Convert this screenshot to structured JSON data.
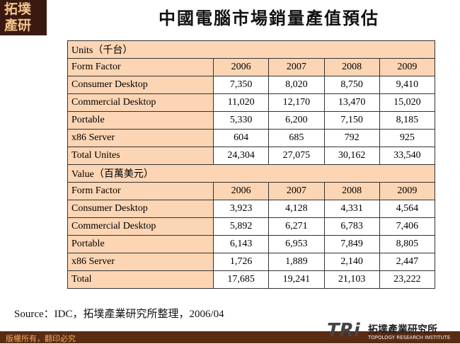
{
  "logo": {
    "line1": "拓墣",
    "line2": "產研"
  },
  "title": "中國電腦市場銷量產值預估",
  "table": {
    "sections": [
      {
        "label": "Units（千台）",
        "header": [
          "Form Factor",
          "2006",
          "2007",
          "2008",
          "2009"
        ],
        "rows": [
          [
            "Consumer Desktop",
            "7,350",
            "8,020",
            "8,750",
            "9,410"
          ],
          [
            "Commercial Desktop",
            "11,020",
            "12,170",
            "13,470",
            "15,020"
          ],
          [
            "Portable",
            "5,330",
            "6,200",
            "7,150",
            "8,185"
          ],
          [
            "x86 Server",
            "604",
            "685",
            "792",
            "925"
          ],
          [
            "Total Unites",
            "24,304",
            "27,075",
            "30,162",
            "33,540"
          ]
        ]
      },
      {
        "label": "Value（百萬美元）",
        "header": [
          "Form Factor",
          "2006",
          "2007",
          "2008",
          "2009"
        ],
        "rows": [
          [
            "Consumer Desktop",
            "3,923",
            "4,128",
            "4,331",
            "4,564"
          ],
          [
            "Commercial Desktop",
            "5,892",
            "6,271",
            "6,783",
            "7,406"
          ],
          [
            "Portable",
            "6,143",
            "6,953",
            "7,849",
            "8,805"
          ],
          [
            "x86 Server",
            "1,726",
            "1,889",
            "2,140",
            "2,447"
          ],
          [
            "Total",
            "17,685",
            "19,241",
            "21,103",
            "23,222"
          ]
        ]
      }
    ]
  },
  "source": "Source：IDC，拓墣產業研究所整理，2006/04",
  "footer": {
    "copyright": "版權所有，翻印必究",
    "brand": "TRi",
    "brand_name": "拓墣產業研究所",
    "brand_en": "TOPOLOGY RESEARCH INSTITUTE"
  }
}
